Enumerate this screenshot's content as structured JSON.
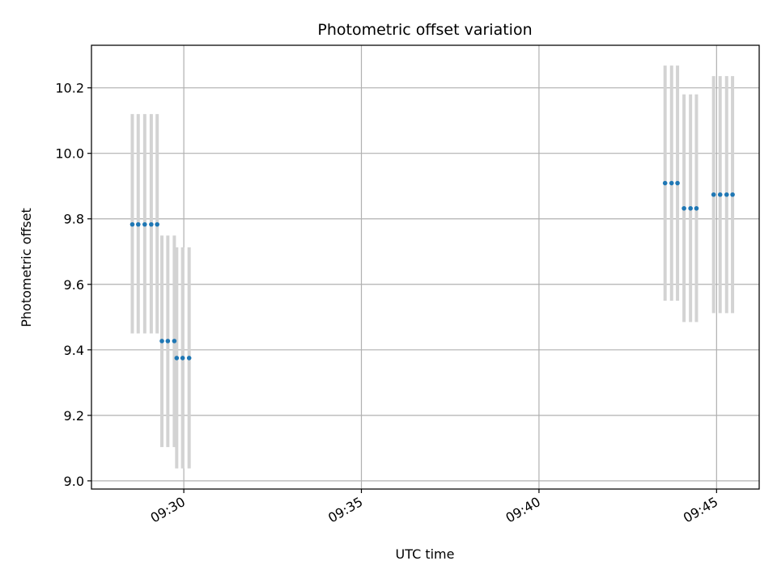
{
  "chart_data": {
    "type": "scatter",
    "title": "Photometric offset variation",
    "xlabel": "UTC time",
    "ylabel": "Photometric offset",
    "x_axis_type": "time",
    "xlim": [
      "09:27:24",
      "09:46:12"
    ],
    "ylim": [
      8.975,
      10.33
    ],
    "grid": true,
    "x_ticks": [
      "09:30",
      "09:35",
      "09:40",
      "09:45"
    ],
    "y_ticks": [
      9.0,
      9.2,
      9.4,
      9.6,
      9.8,
      10.0,
      10.2
    ],
    "y_tick_labels": [
      "9.0",
      "9.2",
      "9.4",
      "9.6",
      "9.8",
      "10.0",
      "10.2"
    ],
    "marker_color": "#1f77b4",
    "errorbar_color": "#d3d3d3",
    "points": [
      {
        "x": "09:28:33",
        "y": 9.783,
        "low": 9.45,
        "high": 10.12
      },
      {
        "x": "09:28:43",
        "y": 9.783,
        "low": 9.45,
        "high": 10.12
      },
      {
        "x": "09:28:54",
        "y": 9.783,
        "low": 9.45,
        "high": 10.12
      },
      {
        "x": "09:29:05",
        "y": 9.783,
        "low": 9.45,
        "high": 10.12
      },
      {
        "x": "09:29:15",
        "y": 9.783,
        "low": 9.45,
        "high": 10.12
      },
      {
        "x": "09:29:23",
        "y": 9.427,
        "low": 9.103,
        "high": 9.749
      },
      {
        "x": "09:29:33",
        "y": 9.427,
        "low": 9.103,
        "high": 9.749
      },
      {
        "x": "09:29:44",
        "y": 9.427,
        "low": 9.103,
        "high": 9.749
      },
      {
        "x": "09:29:48",
        "y": 9.375,
        "low": 9.038,
        "high": 9.713
      },
      {
        "x": "09:29:58",
        "y": 9.375,
        "low": 9.038,
        "high": 9.713
      },
      {
        "x": "09:30:09",
        "y": 9.375,
        "low": 9.038,
        "high": 9.713
      },
      {
        "x": "09:43:33",
        "y": 9.909,
        "low": 9.55,
        "high": 10.268
      },
      {
        "x": "09:43:44",
        "y": 9.909,
        "low": 9.55,
        "high": 10.268
      },
      {
        "x": "09:43:54",
        "y": 9.909,
        "low": 9.55,
        "high": 10.268
      },
      {
        "x": "09:44:05",
        "y": 9.832,
        "low": 9.485,
        "high": 10.18
      },
      {
        "x": "09:44:16",
        "y": 9.832,
        "low": 9.485,
        "high": 10.18
      },
      {
        "x": "09:44:26",
        "y": 9.832,
        "low": 9.485,
        "high": 10.18
      },
      {
        "x": "09:44:55",
        "y": 9.874,
        "low": 9.512,
        "high": 10.236
      },
      {
        "x": "09:45:06",
        "y": 9.874,
        "low": 9.512,
        "high": 10.236
      },
      {
        "x": "09:45:17",
        "y": 9.874,
        "low": 9.512,
        "high": 10.236
      },
      {
        "x": "09:45:27",
        "y": 9.874,
        "low": 9.512,
        "high": 10.236
      }
    ]
  }
}
